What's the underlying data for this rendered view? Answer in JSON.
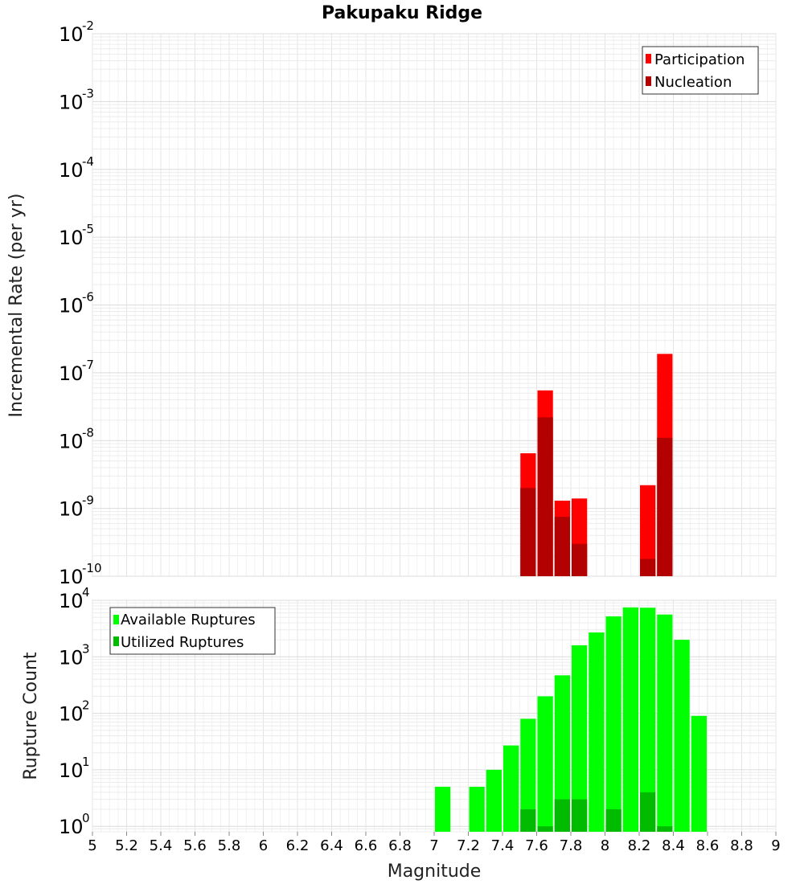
{
  "chart_data": [
    {
      "type": "bar",
      "title": "Pakupaku Ridge",
      "xlabel": "",
      "ylabel": "Incremental Rate (per yr)",
      "yscale": "log",
      "ylim": [
        1e-10,
        0.01
      ],
      "xlim": [
        5,
        9
      ],
      "yticks": [
        {
          "base": "10",
          "exp": "-10",
          "value": 1e-10
        },
        {
          "base": "10",
          "exp": "-9",
          "value": 1e-09
        },
        {
          "base": "10",
          "exp": "-8",
          "value": 1e-08
        },
        {
          "base": "10",
          "exp": "-7",
          "value": 1e-07
        },
        {
          "base": "10",
          "exp": "-6",
          "value": 1e-06
        },
        {
          "base": "10",
          "exp": "-5",
          "value": 1e-05
        },
        {
          "base": "10",
          "exp": "-4",
          "value": 0.0001
        },
        {
          "base": "10",
          "exp": "-3",
          "value": 0.001
        },
        {
          "base": "10",
          "exp": "-2",
          "value": 0.01
        }
      ],
      "grid": true,
      "legend_position": "top-right",
      "series": [
        {
          "name": "Participation",
          "color": "#ff0000",
          "x": [
            7.55,
            7.65,
            7.75,
            7.85,
            8.25,
            8.35
          ],
          "values": [
            6.5e-09,
            5.5e-08,
            1.3e-09,
            1.4e-09,
            2.2e-09,
            1.9e-07
          ]
        },
        {
          "name": "Nucleation",
          "color": "#b30000",
          "x": [
            7.55,
            7.65,
            7.75,
            7.85,
            8.25,
            8.35
          ],
          "values": [
            2e-09,
            2.2e-08,
            7.5e-10,
            3e-10,
            1.8e-10,
            1.1e-08
          ]
        }
      ]
    },
    {
      "type": "bar",
      "title": "",
      "xlabel": "Magnitude",
      "ylabel": "Rupture Count",
      "yscale": "log",
      "ylim": [
        0.8,
        10000
      ],
      "xlim": [
        5,
        9
      ],
      "yticks": [
        {
          "base": "10",
          "exp": "0",
          "value": 1
        },
        {
          "base": "10",
          "exp": "1",
          "value": 10
        },
        {
          "base": "10",
          "exp": "2",
          "value": 100
        },
        {
          "base": "10",
          "exp": "3",
          "value": 1000
        },
        {
          "base": "10",
          "exp": "4",
          "value": 10000
        }
      ],
      "xticks": [
        "5",
        "5.2",
        "5.4",
        "5.6",
        "5.8",
        "6",
        "6.2",
        "6.4",
        "6.6",
        "6.8",
        "7",
        "7.2",
        "7.4",
        "7.6",
        "7.8",
        "8",
        "8.2",
        "8.4",
        "8.6",
        "8.8",
        "9"
      ],
      "grid": true,
      "legend_position": "top-left",
      "series": [
        {
          "name": "Available Ruptures",
          "color": "#00ff00",
          "x": [
            7.05,
            7.25,
            7.35,
            7.45,
            7.55,
            7.65,
            7.75,
            7.85,
            7.95,
            8.05,
            8.15,
            8.25,
            8.35,
            8.45,
            8.55
          ],
          "values": [
            5,
            5,
            10,
            27,
            80,
            200,
            470,
            1600,
            2700,
            5200,
            7500,
            7400,
            5600,
            2000,
            90
          ]
        },
        {
          "name": "Utilized Ruptures",
          "color": "#00bb00",
          "x": [
            7.55,
            7.65,
            7.75,
            7.85,
            8.05,
            8.25,
            8.35
          ],
          "values": [
            2,
            1,
            3,
            3,
            2,
            4,
            1
          ]
        }
      ]
    }
  ]
}
